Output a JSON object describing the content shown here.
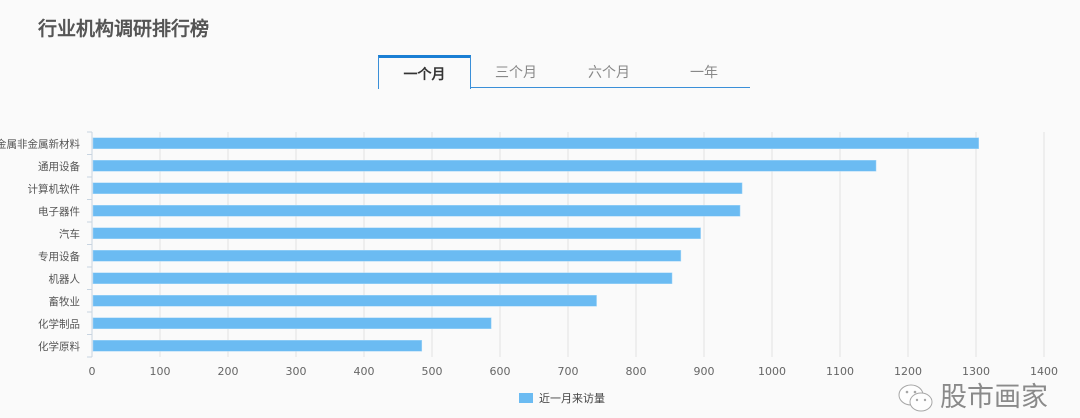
{
  "header": {
    "title": "行业机构调研排行榜"
  },
  "tabs": [
    {
      "label": "一个月",
      "active": true
    },
    {
      "label": "三个月",
      "active": false
    },
    {
      "label": "六个月",
      "active": false
    },
    {
      "label": "一年",
      "active": false
    }
  ],
  "watermark": {
    "text": "股市画家",
    "icon": "wechat-icon"
  },
  "chart_data": {
    "type": "bar",
    "orientation": "horizontal",
    "categories": [
      "金属非金属新材料",
      "通用设备",
      "计算机软件",
      "电子器件",
      "汽车",
      "专用设备",
      "机器人",
      "畜牧业",
      "化学制品",
      "化学原料"
    ],
    "series": [
      {
        "name": "近一月来访量",
        "values": [
          1304,
          1153,
          956,
          953,
          895,
          866,
          853,
          742,
          587,
          485
        ],
        "color": "#6bbbf2"
      }
    ],
    "xlim": [
      0,
      1400
    ],
    "xticks": [
      "0",
      "100",
      "200",
      "300",
      "400",
      "500",
      "600",
      "700",
      "800",
      "900",
      "1000",
      "1100",
      "1200",
      "1300",
      "1400"
    ],
    "grid": true,
    "legend": "bottom"
  }
}
